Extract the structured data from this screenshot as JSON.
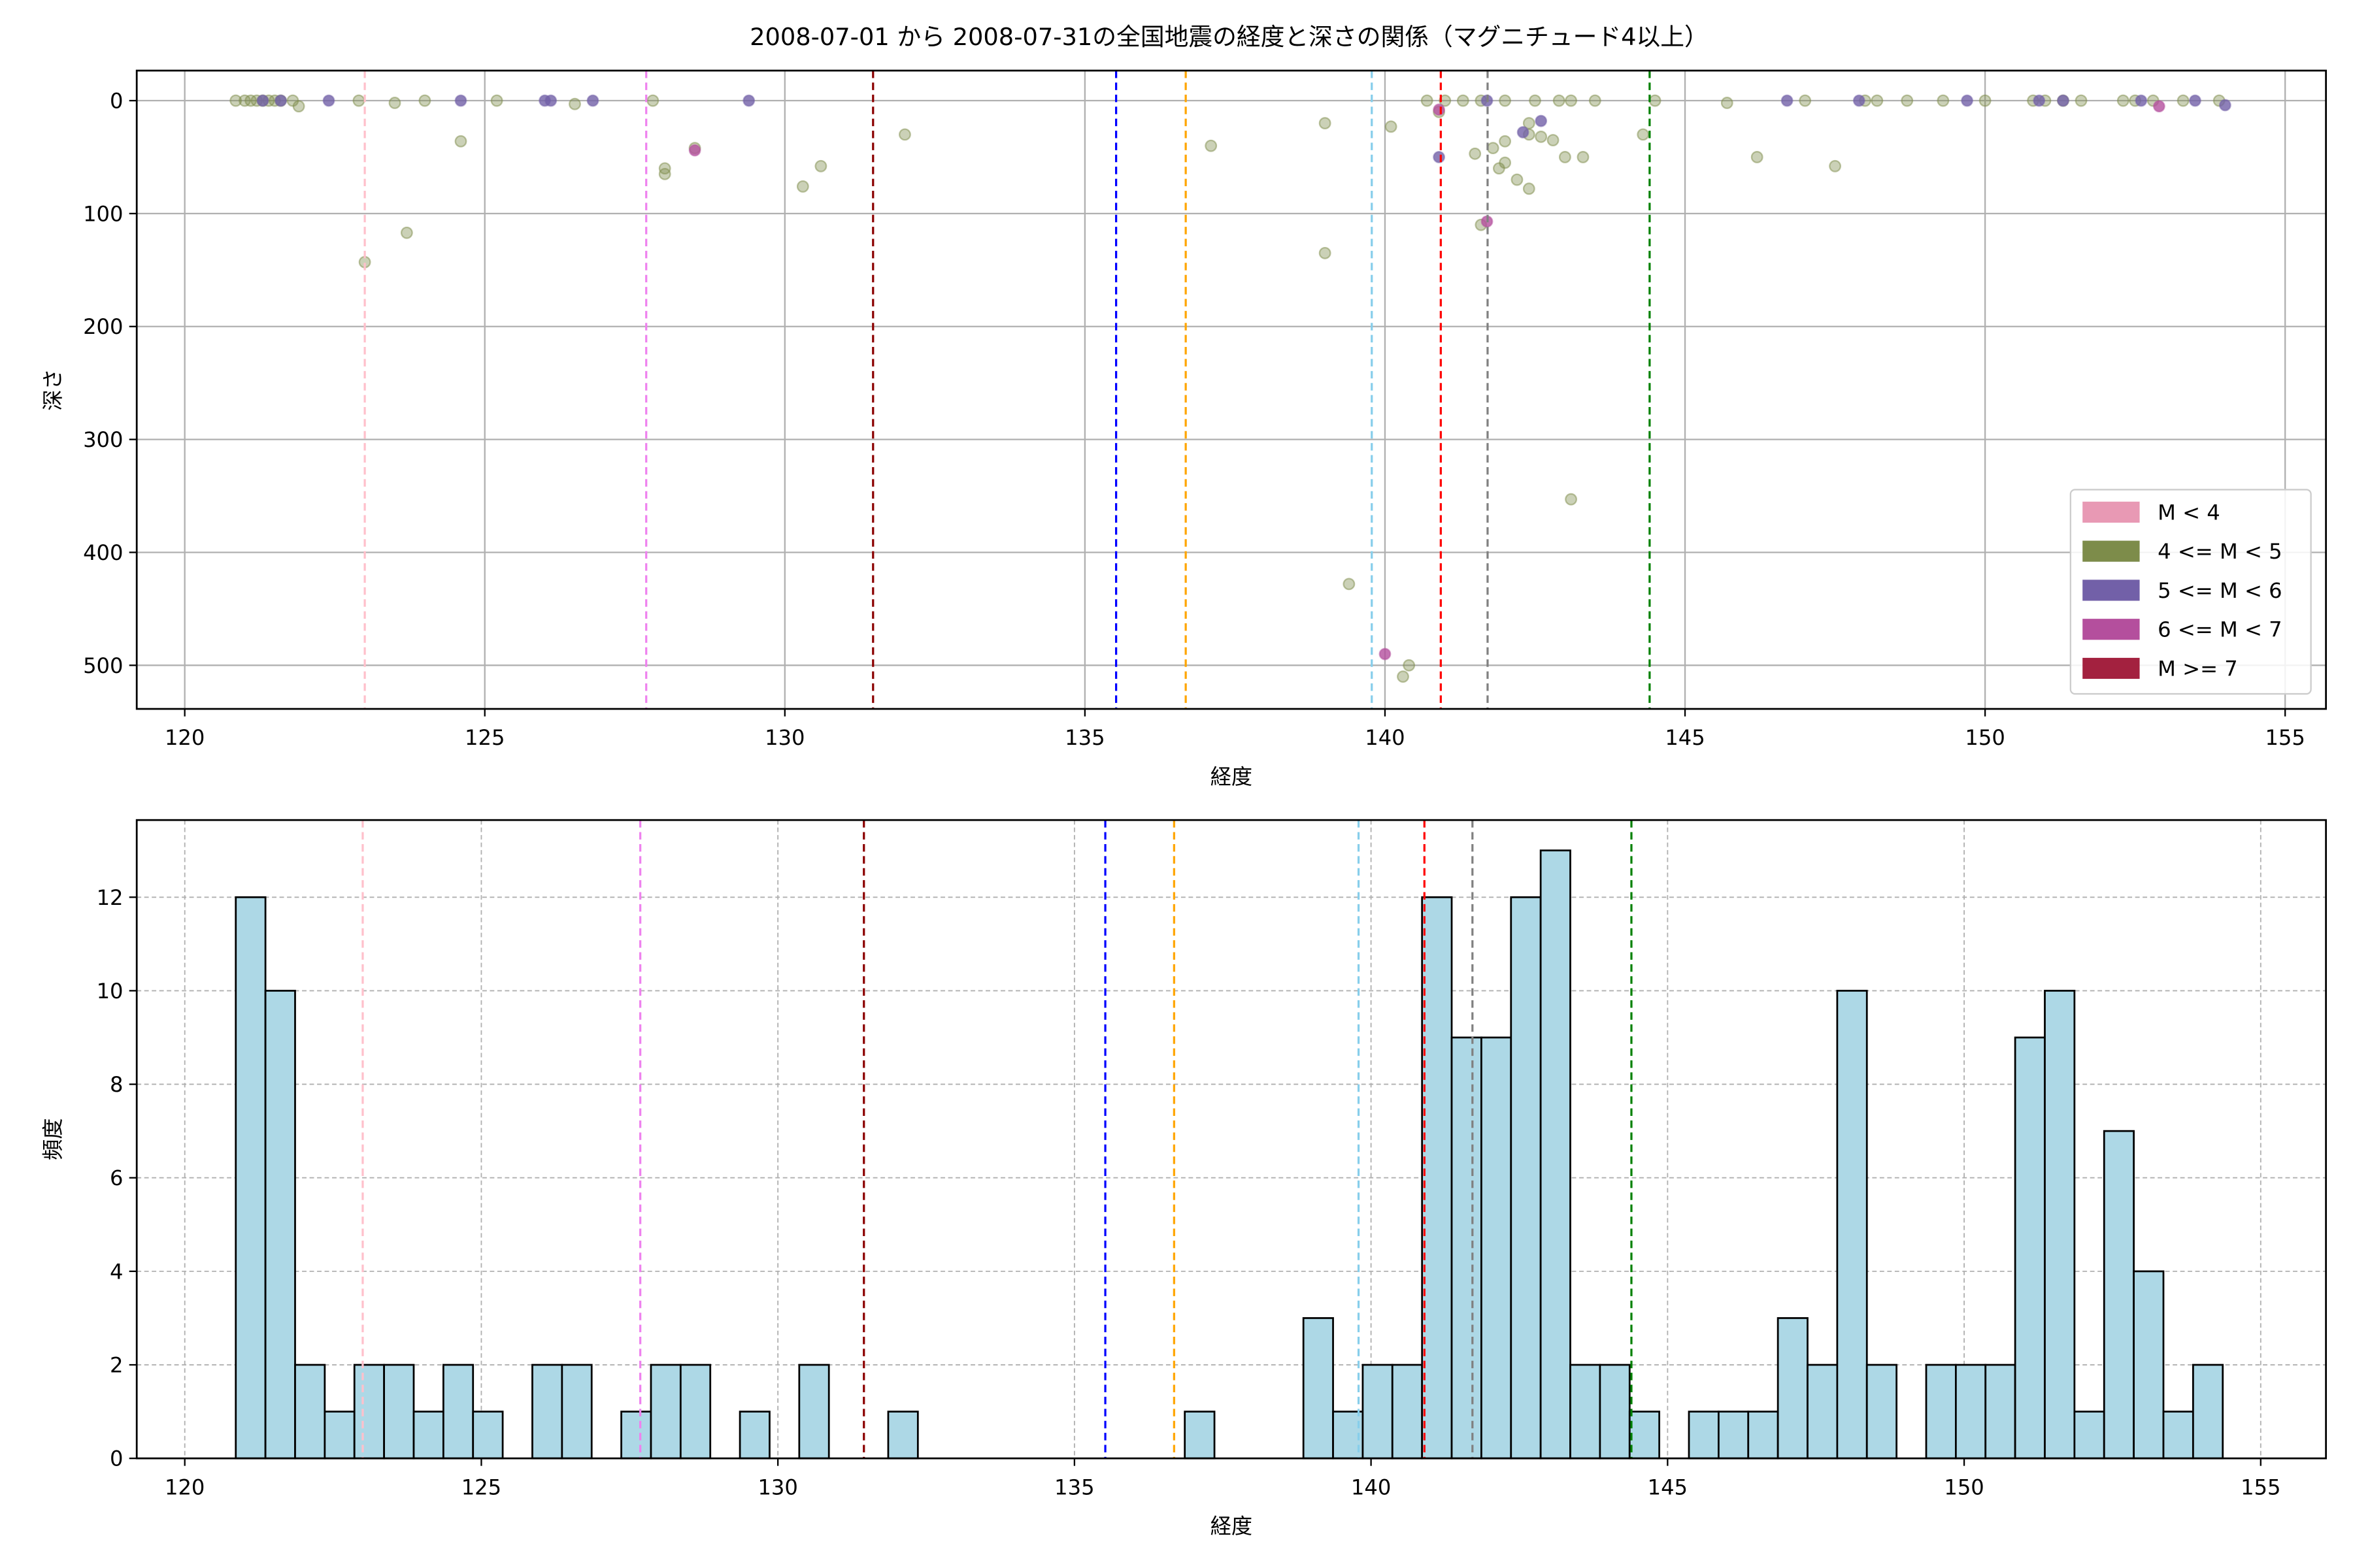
{
  "chart_data": [
    {
      "type": "scatter",
      "title": "2008-07-01 から 2008-07-31の全国地震の経度と深さの関係（マグニチュード4以上）",
      "xlabel": "経度",
      "ylabel": "深さ",
      "xlim": [
        119.2,
        155.68
      ],
      "xticks": [
        120,
        125,
        130,
        135,
        140,
        145,
        150,
        155
      ],
      "ylim": [
        538.6,
        -26.6
      ],
      "yticks": [
        0,
        100,
        200,
        300,
        400,
        500
      ],
      "grid": true,
      "legend": "lower right",
      "series": [
        {
          "name": "M < 4",
          "color": "#e899b4",
          "x": [],
          "values": []
        },
        {
          "name": "4 <= M < 5",
          "color": "#7d8c4a",
          "x": [
            120.85,
            121.0,
            121.1,
            121.2,
            121.3,
            121.4,
            121.5,
            121.6,
            121.8,
            121.9,
            122.9,
            123.0,
            123.5,
            123.7,
            124.0,
            124.6,
            125.2,
            126.5,
            127.8,
            128.0,
            128.0,
            128.5,
            130.3,
            130.6,
            132.0,
            137.1,
            139.0,
            139.0,
            139.4,
            140.1,
            140.3,
            140.4,
            140.7,
            140.9,
            141.0,
            141.3,
            141.5,
            141.6,
            141.6,
            141.8,
            141.9,
            142.0,
            142.0,
            142.0,
            142.2,
            142.4,
            142.4,
            142.4,
            142.5,
            142.6,
            142.8,
            142.9,
            143.0,
            143.1,
            143.1,
            143.3,
            143.5,
            144.3,
            144.5,
            145.7,
            146.2,
            147.0,
            147.5,
            148.0,
            148.2,
            148.7,
            149.3,
            150.0,
            150.8,
            151.0,
            151.3,
            151.6,
            152.3,
            152.5,
            152.8,
            153.3,
            153.9
          ],
          "values": [
            0,
            0,
            0,
            0,
            0,
            0,
            0,
            0,
            0,
            5,
            0,
            143,
            2,
            117,
            0,
            36,
            0,
            3,
            0,
            60,
            65,
            42,
            76,
            58,
            30,
            40,
            20,
            135,
            428,
            23,
            510,
            500,
            0,
            10,
            0,
            0,
            47,
            110,
            0,
            42,
            60,
            0,
            55,
            36,
            70,
            30,
            20,
            78,
            0,
            32,
            35,
            0,
            50,
            0,
            353,
            50,
            0,
            30,
            0,
            2,
            50,
            0,
            58,
            0,
            0,
            0,
            0,
            0,
            0,
            0,
            0,
            0,
            0,
            0,
            0,
            0,
            0
          ]
        },
        {
          "name": "5 <= M < 6",
          "color": "#7260a8",
          "x": [
            121.3,
            121.6,
            122.4,
            124.6,
            126.0,
            126.1,
            126.8,
            129.4,
            140.9,
            142.3,
            142.6,
            141.7,
            146.7,
            147.9,
            149.7,
            150.9,
            151.3,
            152.6,
            153.5,
            154.0
          ],
          "values": [
            0,
            0,
            0,
            0,
            0,
            0,
            0,
            0,
            50,
            28,
            18,
            0,
            0,
            0,
            0,
            0,
            0,
            0,
            0,
            4
          ]
        },
        {
          "name": "6 <= M < 7",
          "color": "#b44f9d",
          "x": [
            128.5,
            140.0,
            140.9,
            141.7,
            152.9
          ],
          "values": [
            44,
            490,
            8,
            107,
            5
          ]
        },
        {
          "name": "M >= 7",
          "color": "#a3213f",
          "x": [],
          "values": []
        }
      ],
      "vlines": [
        {
          "x": 123.0,
          "color": "pink"
        },
        {
          "x": 127.69,
          "color": "violet"
        },
        {
          "x": 131.47,
          "color": "darkred"
        },
        {
          "x": 135.52,
          "color": "blue"
        },
        {
          "x": 136.68,
          "color": "orange"
        },
        {
          "x": 139.78,
          "color": "skyblue"
        },
        {
          "x": 140.93,
          "color": "red"
        },
        {
          "x": 141.71,
          "color": "gray"
        },
        {
          "x": 144.41,
          "color": "green"
        }
      ]
    },
    {
      "type": "histogram",
      "xlabel": "経度",
      "ylabel": "頻度",
      "xlim": [
        119.19,
        156.1
      ],
      "xticks": [
        120,
        125,
        130,
        135,
        140,
        145,
        150,
        155
      ],
      "ylim": [
        0,
        13.65
      ],
      "yticks": [
        0,
        2,
        4,
        6,
        8,
        10,
        12
      ],
      "grid": true,
      "color": "#add8e6",
      "edgecolor": "#000000",
      "bins": [
        120.86,
        121.36,
        121.86,
        122.36,
        122.86,
        123.36,
        123.86,
        124.36,
        124.86,
        125.36,
        125.86,
        126.36,
        126.86,
        127.36,
        127.86,
        128.36,
        128.86,
        129.36,
        129.86,
        130.36,
        130.86,
        131.36,
        131.86,
        132.36,
        132.86,
        133.36,
        133.86,
        134.36,
        134.86,
        135.36,
        135.86,
        136.36,
        136.86,
        137.36,
        137.86,
        138.36,
        138.86,
        139.36,
        139.86,
        140.36,
        140.86,
        141.36,
        141.86,
        142.36,
        142.86,
        143.36,
        143.86,
        144.36,
        144.86,
        145.36,
        145.86,
        146.36,
        146.86,
        147.36,
        147.86,
        148.36,
        148.86,
        149.36,
        149.86,
        150.36,
        150.86,
        151.36,
        151.86,
        152.36,
        152.86,
        153.36,
        153.86,
        154.36
      ],
      "values": [
        12,
        10,
        2,
        1,
        2,
        2,
        1,
        2,
        1,
        0,
        2,
        2,
        0,
        1,
        2,
        2,
        0,
        1,
        0,
        2,
        0,
        0,
        1,
        0,
        0,
        0,
        0,
        0,
        0,
        0,
        0,
        0,
        1,
        0,
        0,
        0,
        3,
        1,
        2,
        2,
        12,
        9,
        9,
        12,
        13,
        2,
        2,
        1,
        0,
        1,
        1,
        1,
        3,
        2,
        10,
        2,
        0,
        2,
        2,
        2,
        9,
        10,
        1,
        7,
        4,
        1,
        2
      ],
      "vlines": [
        {
          "x": 123.0,
          "color": "pink"
        },
        {
          "x": 127.68,
          "color": "violet"
        },
        {
          "x": 131.45,
          "color": "darkred"
        },
        {
          "x": 135.52,
          "color": "blue"
        },
        {
          "x": 136.68,
          "color": "orange"
        },
        {
          "x": 139.79,
          "color": "skyblue"
        },
        {
          "x": 140.9,
          "color": "red"
        },
        {
          "x": 141.71,
          "color": "gray"
        },
        {
          "x": 144.39,
          "color": "green"
        }
      ]
    }
  ]
}
